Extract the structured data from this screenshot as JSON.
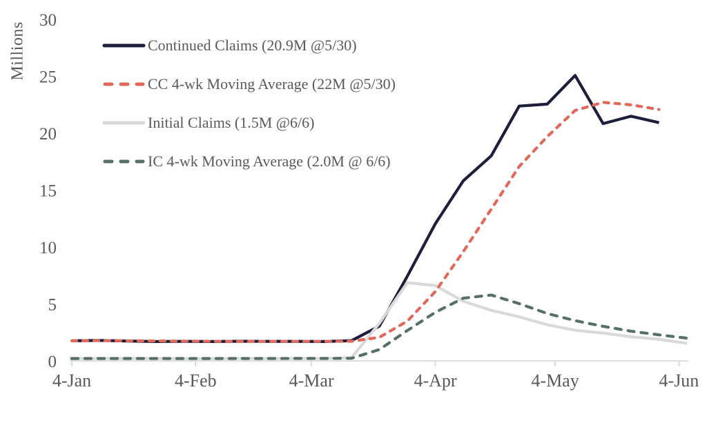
{
  "chart_data": {
    "type": "line",
    "title": "",
    "ylabel": "Millions",
    "xlabel": "",
    "ylim": [
      0,
      30
    ],
    "y_ticks": [
      0,
      5,
      10,
      15,
      20,
      25,
      30
    ],
    "x_tick_labels": [
      "4-Jan",
      "4-Feb",
      "4-Mar",
      "4-Apr",
      "4-May",
      "4-Jun"
    ],
    "x_tick_day_offsets": [
      0,
      31,
      60,
      91,
      121,
      152
    ],
    "total_days": 154,
    "point_interval_days": 7,
    "grid": false,
    "legend_position": "upper-left",
    "background_color": "#ffffff",
    "axis_color": "#d2d2d2",
    "text_color": "#595959",
    "week_ending_dates": [
      "4-Jan",
      "11-Jan",
      "18-Jan",
      "25-Jan",
      "1-Feb",
      "8-Feb",
      "15-Feb",
      "22-Feb",
      "29-Feb",
      "7-Mar",
      "14-Mar",
      "21-Mar",
      "28-Mar",
      "4-Apr",
      "11-Apr",
      "18-Apr",
      "25-Apr",
      "2-May",
      "9-May",
      "16-May",
      "23-May",
      "30-May",
      "6-Jun"
    ],
    "series": [
      {
        "name": "continued-claims",
        "label": "Continued Claims (20.9M @5/30)",
        "color": "#1d1d3c",
        "style": "solid",
        "dash": null,
        "last_point": "20.9M @5/30",
        "values": [
          1.77,
          1.8,
          1.75,
          1.7,
          1.72,
          1.7,
          1.73,
          1.72,
          1.72,
          1.7,
          1.78,
          3.06,
          7.45,
          12.05,
          15.82,
          18.01,
          22.38,
          22.55,
          25.07,
          20.84,
          21.49,
          20.93
        ]
      },
      {
        "name": "cc-4wk-moving-average",
        "label": "CC 4-wk Moving Average (22M @5/30)",
        "color": "#e0695a",
        "style": "dashed",
        "dash": "7 9",
        "last_point": "22M @5/30",
        "values": [
          1.77,
          1.79,
          1.77,
          1.76,
          1.74,
          1.72,
          1.71,
          1.72,
          1.72,
          1.72,
          1.73,
          2.07,
          3.5,
          6.09,
          9.6,
          13.33,
          17.07,
          19.69,
          22.0,
          22.71,
          22.49,
          22.08
        ]
      },
      {
        "name": "initial-claims",
        "label": "Initial Claims (1.5M @6/6)",
        "color": "#d9d9d9",
        "style": "solid",
        "dash": null,
        "last_point": "1.5M @6/6",
        "values": [
          0.21,
          0.21,
          0.22,
          0.21,
          0.2,
          0.2,
          0.22,
          0.22,
          0.22,
          0.21,
          0.28,
          3.31,
          6.87,
          6.62,
          5.24,
          4.44,
          3.87,
          3.18,
          2.69,
          2.45,
          2.12,
          1.9,
          1.54
        ]
      },
      {
        "name": "ic-4wk-moving-average",
        "label": "IC 4-wk Moving Average (2.0M @ 6/6)",
        "color": "#567163",
        "style": "dashed",
        "dash": "9 10",
        "last_point": "2.0M @ 6/6",
        "values": [
          0.21,
          0.21,
          0.21,
          0.21,
          0.21,
          0.21,
          0.21,
          0.21,
          0.22,
          0.22,
          0.23,
          1.0,
          2.67,
          4.27,
          5.51,
          5.79,
          5.03,
          4.17,
          3.54,
          3.04,
          2.61,
          2.29,
          2.0
        ]
      }
    ],
    "draw_order": [
      0,
      2,
      1,
      3
    ]
  }
}
